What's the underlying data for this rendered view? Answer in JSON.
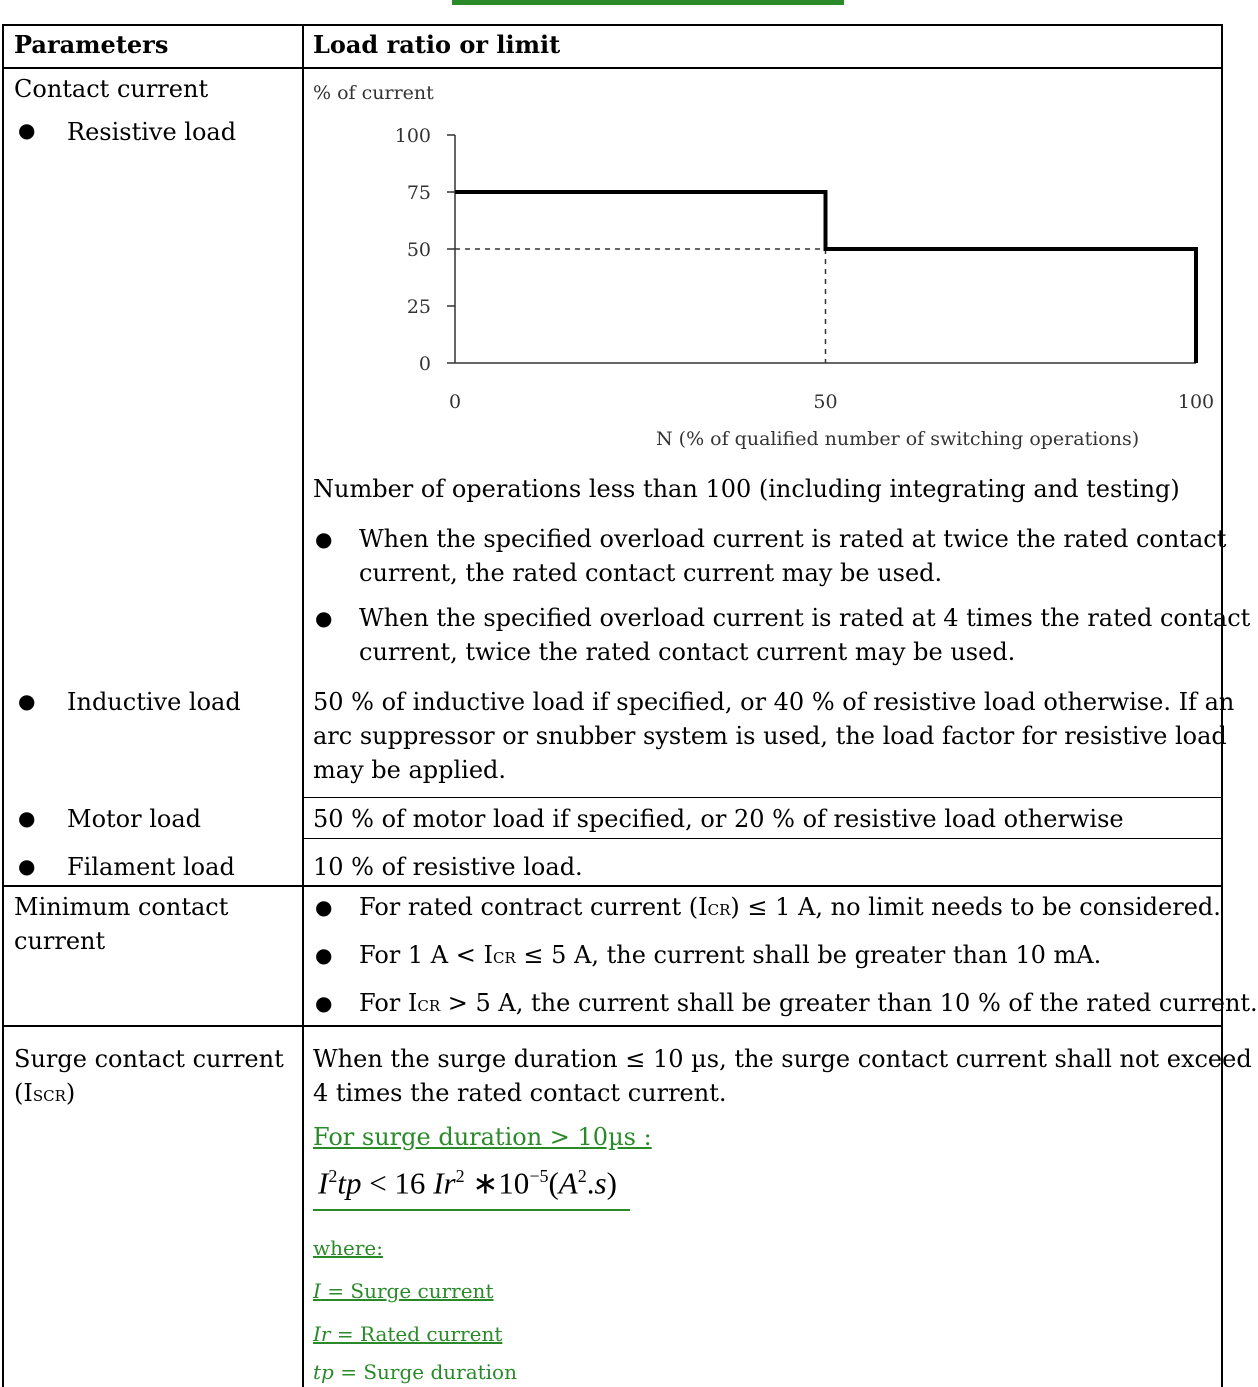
{
  "header_bar_color": "#2a8a2a",
  "table": {
    "col_headers": [
      "Parameters",
      "Load ratio or limit"
    ],
    "contact_current": {
      "param": "Contact current",
      "resistive": "Resistive load",
      "chart_label_y": "% of current",
      "chart_label_x": "N (% of qualified number of switching operations)",
      "note": "Number of operations less than 100 (including integrating and testing)",
      "bullet1_line1": "When the specified overload current is rated at twice the rated contact",
      "bullet1_line2": "current, the rated contact current may be used.",
      "bullet2_line1": "When the specified overload current is rated at 4 times the rated contact",
      "bullet2_line2": "current, twice the rated contact current may be used."
    },
    "inductive": {
      "param": "Inductive load",
      "line1": "50 % of inductive load if specified, or 40 % of resistive load otherwise. If an",
      "line2": "arc suppressor or snubber system is used, the load factor for resistive load",
      "line3": "may be applied."
    },
    "motor": {
      "param": "Motor load",
      "value": "50 % of motor load if specified, or 20 % of resistive load otherwise"
    },
    "filament": {
      "param": "Filament load",
      "value": "10 % of resistive load."
    },
    "minimum": {
      "param_line1": "Minimum contact",
      "param_line2": "current",
      "b1_a": "For rated contract current (I",
      "b1_sub": "CR",
      "b1_b": ") ≤ 1 A, no limit needs to be considered.",
      "b2_a": "For 1 A < I",
      "b2_sub": "CR",
      "b2_b": " ≤ 5 A, the current shall be greater than 10 mA.",
      "b3_a": "For I",
      "b3_sub": "CR",
      "b3_b": " > 5 A, the current shall be greater than 10 % of the rated current."
    },
    "surge": {
      "param_line1": "Surge contact current",
      "param_line2_a": "(I",
      "param_line2_sub": "SCR",
      "param_line2_b": ")",
      "line1": "When the surge duration  ≤ 10 µs, the surge contact current shall not exceed",
      "line2": "4 times the rated contact current.",
      "green_heading": "For surge duration > 10µs :",
      "where": "where:",
      "def_I_sym": "I",
      "def_I_text": "  = Surge current",
      "def_Ir_sym": "Ir",
      "def_Ir_text": " = Rated current",
      "def_tp_sym": "tp",
      "def_tp_text": " = Surge duration"
    }
  },
  "chart_data": {
    "type": "line",
    "ylabel": "% of current",
    "xlabel": "N (% of qualified number of switching operations)",
    "x_ticks": [
      "0",
      "50",
      "100"
    ],
    "y_ticks": [
      "0",
      "25",
      "50",
      "75",
      "100"
    ],
    "xlim": [
      0,
      100
    ],
    "ylim": [
      0,
      100
    ],
    "series": [
      {
        "x": [
          0,
          50,
          50,
          100,
          100
        ],
        "y": [
          75,
          75,
          50,
          50,
          0
        ]
      }
    ],
    "reference_lines": {
      "horizontal_y": 50,
      "vertical_x": 50,
      "style": "dashed"
    }
  }
}
